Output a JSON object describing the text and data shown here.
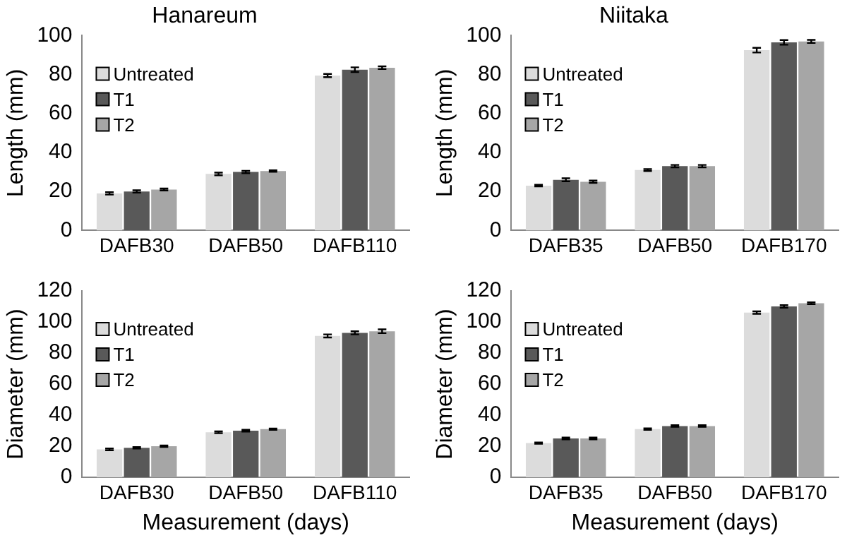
{
  "chart_data": [
    {
      "type": "bar",
      "title": "Hanareum",
      "ylabel": "Length (mm)",
      "categories": [
        "DAFB30",
        "DAFB50",
        "DAFB110"
      ],
      "ylim": [
        0,
        100
      ],
      "yticks": [
        0,
        20,
        40,
        60,
        80,
        100
      ],
      "grid": false,
      "legend": "top left",
      "series": [
        {
          "name": "Untreated",
          "color": "#dcdcdc",
          "values": [
            19,
            29,
            79.5
          ],
          "errors": [
            0.6,
            0.7,
            0.8
          ]
        },
        {
          "name": "T1",
          "color": "#595959",
          "values": [
            20,
            30,
            82.5
          ],
          "errors": [
            0.6,
            0.6,
            1.2
          ]
        },
        {
          "name": "T2",
          "color": "#a6a6a6",
          "values": [
            21,
            30.5,
            83.5
          ],
          "errors": [
            0.5,
            0.4,
            0.7
          ]
        }
      ]
    },
    {
      "type": "bar",
      "title": "Niitaka",
      "ylabel": "Length (mm)",
      "categories": [
        "DAFB35",
        "DAFB50",
        "DAFB170"
      ],
      "ylim": [
        0,
        100
      ],
      "yticks": [
        0,
        20,
        40,
        60,
        80,
        100
      ],
      "grid": false,
      "legend": "top left",
      "series": [
        {
          "name": "Untreated",
          "color": "#dcdcdc",
          "values": [
            23,
            31,
            92.5
          ],
          "errors": [
            0.4,
            0.5,
            1.2
          ]
        },
        {
          "name": "T1",
          "color": "#595959",
          "values": [
            26,
            33,
            96.5
          ],
          "errors": [
            0.8,
            0.6,
            1.2
          ]
        },
        {
          "name": "T2",
          "color": "#a6a6a6",
          "values": [
            25.0,
            33.0,
            97.0
          ],
          "errors": [
            0.6,
            0.6,
            0.8
          ]
        }
      ]
    },
    {
      "type": "bar",
      "xlabel": "Measurement (days)",
      "ylabel": "Diameter (mm)",
      "categories": [
        "DAFB30",
        "DAFB50",
        "DAFB110"
      ],
      "ylim": [
        0,
        120
      ],
      "yticks": [
        0,
        20,
        40,
        60,
        80,
        100,
        120
      ],
      "grid": false,
      "legend": "top left",
      "series": [
        {
          "name": "Untreated",
          "color": "#dcdcdc",
          "values": [
            18,
            29,
            91
          ],
          "errors": [
            0.6,
            0.6,
            1.0
          ]
        },
        {
          "name": "T1",
          "color": "#595959",
          "values": [
            19,
            30,
            93
          ],
          "errors": [
            0.5,
            0.6,
            1.0
          ]
        },
        {
          "name": "T2",
          "color": "#a6a6a6",
          "values": [
            20,
            31,
            94
          ],
          "errors": [
            0.5,
            0.4,
            1.2
          ]
        }
      ]
    },
    {
      "type": "bar",
      "xlabel": "Measurement (days)",
      "ylabel": "Diameter (mm)",
      "categories": [
        "DAFB35",
        "DAFB50",
        "DAFB170"
      ],
      "ylim": [
        0,
        120
      ],
      "yticks": [
        0,
        20,
        40,
        60,
        80,
        100,
        120
      ],
      "grid": false,
      "legend": "top left",
      "series": [
        {
          "name": "Untreated",
          "color": "#dcdcdc",
          "values": [
            22,
            31,
            106
          ],
          "errors": [
            0.4,
            0.5,
            0.8
          ]
        },
        {
          "name": "T1",
          "color": "#595959",
          "values": [
            25,
            33,
            110
          ],
          "errors": [
            0.6,
            0.5,
            0.8
          ]
        },
        {
          "name": "T2",
          "color": "#a6a6a6",
          "values": [
            25,
            33,
            112
          ],
          "errors": [
            0.6,
            0.5,
            0.6
          ]
        }
      ]
    }
  ]
}
